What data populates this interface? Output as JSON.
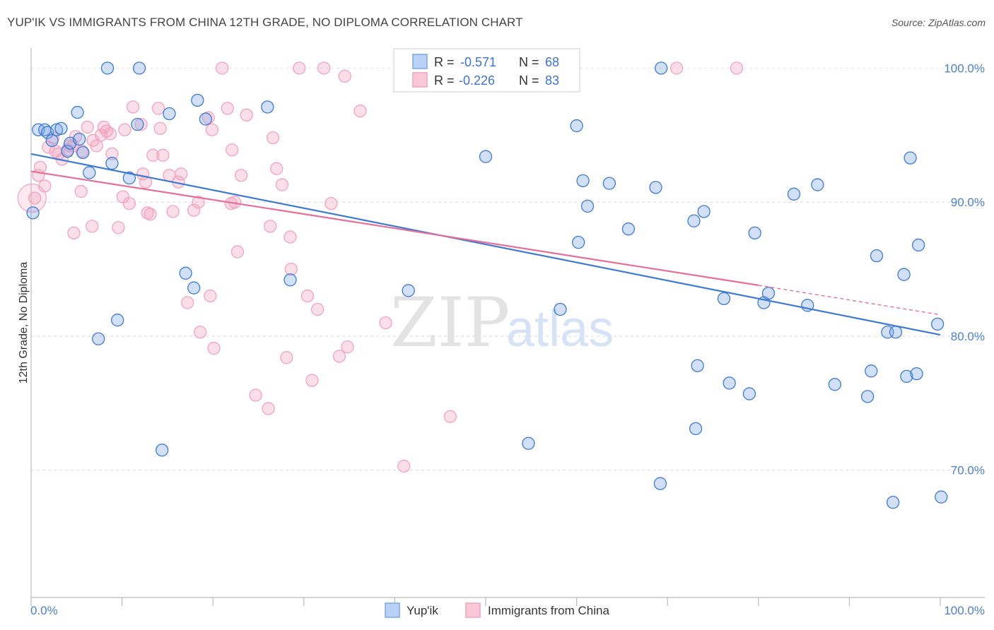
{
  "header": {
    "title": "YUP'IK VS IMMIGRANTS FROM CHINA 12TH GRADE, NO DIPLOMA CORRELATION CHART",
    "source": "Source: ZipAtlas.com"
  },
  "watermark": {
    "zip": "ZIP",
    "atlas": "atlas"
  },
  "legend": {
    "r_label": "R =",
    "n_label": "N =",
    "rows": [
      {
        "r": "-0.571",
        "n": "68"
      },
      {
        "r": "-0.226",
        "n": "83"
      }
    ]
  },
  "bottom_legend": [
    "Yup'ik",
    "Immigrants from China"
  ],
  "chart_data": {
    "type": "scatter",
    "title": "YUP'IK VS IMMIGRANTS FROM CHINA 12TH GRADE, NO DIPLOMA CORRELATION CHART",
    "xlabel": "",
    "ylabel": "12th Grade, No Diploma",
    "xlim": [
      0,
      100
    ],
    "ylim": [
      60.5,
      101.5
    ],
    "x_tick_labels": [
      "0.0%",
      "100.0%"
    ],
    "y_ticks": [
      70,
      80,
      90,
      100
    ],
    "y_tick_labels": [
      "70.0%",
      "80.0%",
      "90.0%",
      "100.0%"
    ],
    "grid": true,
    "colors": {
      "yupik": "#7aa7e8",
      "china": "#f2a3bd",
      "yupik_line": "#3d7ad6",
      "china_line": "#e66f98"
    },
    "series": [
      {
        "name": "Yup'ik",
        "trend": {
          "x": [
            0,
            100
          ],
          "y": [
            93.6,
            80.1
          ]
        },
        "points": [
          [
            0.2,
            89.2
          ],
          [
            0.8,
            95.4
          ],
          [
            1.5,
            95.4
          ],
          [
            1.8,
            95.2
          ],
          [
            2.3,
            94.6
          ],
          [
            2.8,
            95.4
          ],
          [
            3.3,
            95.5
          ],
          [
            4.0,
            93.8
          ],
          [
            4.3,
            94.4
          ],
          [
            5.1,
            96.7
          ],
          [
            5.3,
            94.7
          ],
          [
            5.7,
            93.7
          ],
          [
            6.4,
            92.2
          ],
          [
            7.4,
            79.8
          ],
          [
            8.4,
            100.0
          ],
          [
            8.9,
            92.9
          ],
          [
            9.5,
            81.2
          ],
          [
            10.8,
            91.8
          ],
          [
            11.7,
            95.8
          ],
          [
            11.9,
            100.0
          ],
          [
            14.4,
            71.5
          ],
          [
            15.2,
            96.6
          ],
          [
            17.0,
            84.7
          ],
          [
            17.9,
            83.6
          ],
          [
            18.3,
            97.6
          ],
          [
            19.2,
            96.2
          ],
          [
            26.0,
            97.1
          ],
          [
            28.5,
            84.2
          ],
          [
            41.5,
            83.4
          ],
          [
            50.0,
            93.4
          ],
          [
            54.7,
            72.0
          ],
          [
            58.2,
            82.0
          ],
          [
            60.0,
            95.7
          ],
          [
            60.2,
            87.0
          ],
          [
            60.7,
            91.6
          ],
          [
            61.2,
            89.7
          ],
          [
            63.6,
            91.4
          ],
          [
            65.7,
            88.0
          ],
          [
            68.7,
            91.1
          ],
          [
            69.2,
            69.0
          ],
          [
            69.3,
            100.0
          ],
          [
            72.9,
            88.6
          ],
          [
            73.3,
            77.8
          ],
          [
            73.1,
            73.1
          ],
          [
            74.0,
            89.3
          ],
          [
            76.2,
            82.8
          ],
          [
            76.8,
            76.5
          ],
          [
            79.0,
            75.7
          ],
          [
            79.6,
            87.7
          ],
          [
            80.6,
            82.5
          ],
          [
            81.1,
            83.2
          ],
          [
            83.9,
            90.6
          ],
          [
            85.4,
            82.3
          ],
          [
            86.5,
            91.3
          ],
          [
            88.4,
            76.4
          ],
          [
            92.0,
            75.5
          ],
          [
            92.4,
            77.4
          ],
          [
            93.0,
            86.0
          ],
          [
            94.2,
            80.3
          ],
          [
            95.1,
            80.3
          ],
          [
            94.8,
            67.6
          ],
          [
            96.0,
            84.6
          ],
          [
            96.3,
            77.0
          ],
          [
            96.7,
            93.3
          ],
          [
            97.6,
            86.8
          ],
          [
            97.4,
            77.2
          ],
          [
            99.7,
            80.9
          ],
          [
            100.1,
            68.0
          ]
        ]
      },
      {
        "name": "Immigrants from China",
        "trend": {
          "x": [
            0,
            80
          ],
          "y": [
            92.3,
            83.8
          ]
        },
        "trend_dashed": {
          "x": [
            80,
            100
          ],
          "y": [
            83.8,
            81.6
          ]
        },
        "points": [
          [
            0.4,
            90.3
          ],
          [
            0.8,
            92.0
          ],
          [
            1.0,
            92.6
          ],
          [
            1.5,
            91.2
          ],
          [
            1.9,
            94.1
          ],
          [
            2.4,
            94.8
          ],
          [
            2.7,
            93.8
          ],
          [
            3.0,
            93.6
          ],
          [
            3.4,
            93.2
          ],
          [
            4.0,
            93.9
          ],
          [
            4.2,
            94.2
          ],
          [
            4.6,
            94.2
          ],
          [
            4.7,
            87.7
          ],
          [
            4.9,
            94.9
          ],
          [
            5.5,
            90.8
          ],
          [
            5.6,
            93.8
          ],
          [
            6.2,
            95.6
          ],
          [
            6.7,
            88.2
          ],
          [
            6.8,
            94.6
          ],
          [
            7.2,
            94.2
          ],
          [
            7.7,
            95.0
          ],
          [
            8.0,
            95.6
          ],
          [
            8.3,
            95.3
          ],
          [
            8.7,
            95.1
          ],
          [
            8.9,
            93.6
          ],
          [
            9.6,
            88.1
          ],
          [
            10.1,
            90.4
          ],
          [
            10.3,
            95.4
          ],
          [
            10.8,
            89.9
          ],
          [
            11.2,
            97.1
          ],
          [
            12.1,
            95.8
          ],
          [
            12.3,
            92.1
          ],
          [
            12.6,
            91.5
          ],
          [
            12.8,
            89.2
          ],
          [
            13.1,
            89.1
          ],
          [
            13.4,
            93.5
          ],
          [
            14.0,
            97.0
          ],
          [
            14.2,
            95.5
          ],
          [
            14.5,
            93.5
          ],
          [
            15.2,
            92.0
          ],
          [
            15.6,
            89.3
          ],
          [
            16.2,
            91.5
          ],
          [
            16.5,
            92.1
          ],
          [
            17.2,
            82.5
          ],
          [
            17.9,
            89.4
          ],
          [
            18.4,
            90.0
          ],
          [
            18.6,
            80.3
          ],
          [
            19.5,
            96.3
          ],
          [
            19.7,
            83.0
          ],
          [
            19.9,
            95.4
          ],
          [
            20.1,
            79.1
          ],
          [
            21.0,
            100.0
          ],
          [
            21.6,
            97.0
          ],
          [
            22.0,
            89.9
          ],
          [
            22.1,
            93.9
          ],
          [
            22.4,
            90.0
          ],
          [
            22.7,
            86.3
          ],
          [
            23.1,
            92.0
          ],
          [
            23.7,
            96.5
          ],
          [
            24.7,
            75.6
          ],
          [
            26.1,
            74.6
          ],
          [
            26.3,
            88.2
          ],
          [
            26.6,
            94.8
          ],
          [
            27.0,
            92.5
          ],
          [
            27.6,
            91.3
          ],
          [
            28.1,
            78.4
          ],
          [
            28.5,
            87.4
          ],
          [
            28.6,
            85.0
          ],
          [
            29.5,
            100.0
          ],
          [
            30.4,
            83.0
          ],
          [
            30.9,
            76.7
          ],
          [
            31.5,
            82.0
          ],
          [
            32.2,
            100.0
          ],
          [
            33.0,
            89.9
          ],
          [
            33.9,
            78.5
          ],
          [
            34.5,
            99.4
          ],
          [
            34.8,
            79.2
          ],
          [
            36.2,
            96.8
          ],
          [
            39.0,
            81.0
          ],
          [
            41.0,
            70.3
          ],
          [
            46.1,
            74.0
          ],
          [
            71.0,
            100.0
          ],
          [
            77.6,
            100.0
          ]
        ]
      }
    ]
  }
}
